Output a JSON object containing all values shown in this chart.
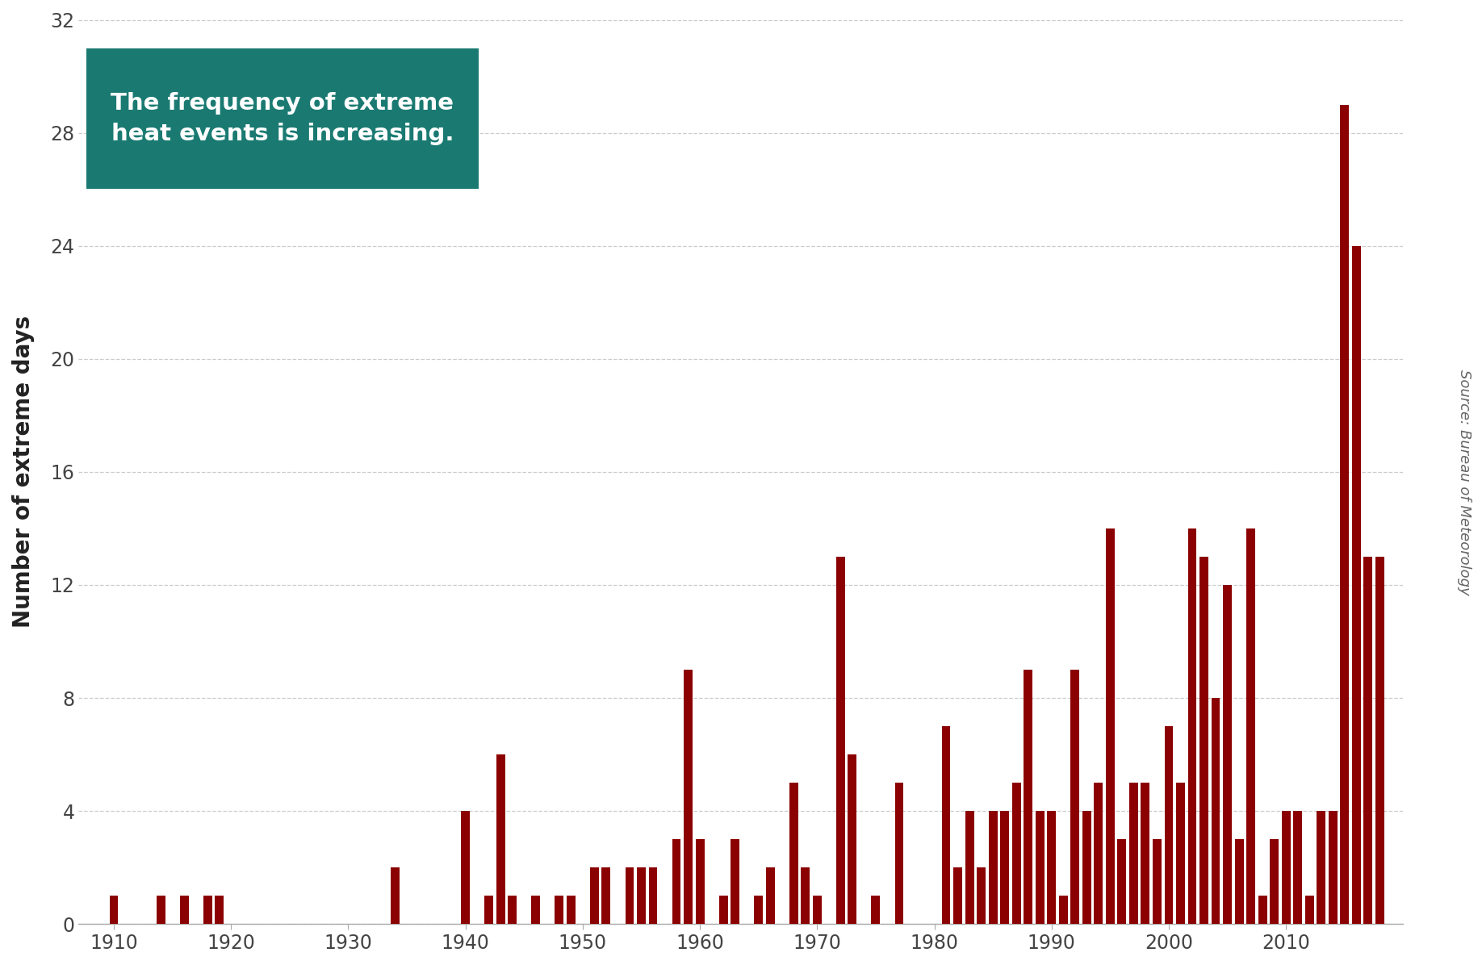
{
  "years": [
    1910,
    1911,
    1912,
    1913,
    1914,
    1915,
    1916,
    1917,
    1918,
    1919,
    1920,
    1921,
    1922,
    1923,
    1924,
    1925,
    1926,
    1927,
    1928,
    1929,
    1930,
    1931,
    1932,
    1933,
    1934,
    1935,
    1936,
    1937,
    1938,
    1939,
    1940,
    1941,
    1942,
    1943,
    1944,
    1945,
    1946,
    1947,
    1948,
    1949,
    1950,
    1951,
    1952,
    1953,
    1954,
    1955,
    1956,
    1957,
    1958,
    1959,
    1960,
    1961,
    1962,
    1963,
    1964,
    1965,
    1966,
    1967,
    1968,
    1969,
    1970,
    1971,
    1972,
    1973,
    1974,
    1975,
    1976,
    1977,
    1978,
    1979,
    1980,
    1981,
    1982,
    1983,
    1984,
    1985,
    1986,
    1987,
    1988,
    1989,
    1990,
    1991,
    1992,
    1993,
    1994,
    1995,
    1996,
    1997,
    1998,
    1999,
    2000,
    2001,
    2002,
    2003,
    2004,
    2005,
    2006,
    2007,
    2008,
    2009,
    2010,
    2011,
    2012,
    2013,
    2014,
    2015,
    2016,
    2017,
    2018
  ],
  "values": [
    1,
    0,
    0,
    0,
    1,
    0,
    1,
    0,
    1,
    1,
    0,
    0,
    0,
    0,
    0,
    0,
    0,
    0,
    0,
    0,
    0,
    0,
    0,
    0,
    2,
    0,
    0,
    0,
    0,
    0,
    4,
    0,
    1,
    6,
    1,
    0,
    1,
    0,
    1,
    1,
    0,
    2,
    2,
    0,
    2,
    2,
    2,
    0,
    3,
    9,
    3,
    0,
    1,
    3,
    0,
    1,
    2,
    0,
    5,
    2,
    1,
    0,
    13,
    6,
    0,
    1,
    0,
    5,
    0,
    0,
    0,
    7,
    2,
    4,
    2,
    4,
    4,
    5,
    9,
    4,
    4,
    1,
    9,
    4,
    5,
    14,
    3,
    5,
    5,
    3,
    7,
    5,
    14,
    13,
    8,
    12,
    3,
    14,
    1,
    3,
    4,
    4,
    1,
    4,
    4,
    29,
    24,
    13,
    13
  ],
  "bar_color": "#8B0000",
  "background_color": "#ffffff",
  "ylabel": "Number of extreme days",
  "annotation_text": "The frequency of extreme\nheat events is increasing.",
  "annotation_bg": "#1a7a72",
  "annotation_text_color": "#ffffff",
  "source_text": "Source: Bureau of Meteorology",
  "ylim": [
    0,
    32
  ],
  "yticks": [
    0,
    4,
    8,
    12,
    16,
    20,
    24,
    28,
    32
  ],
  "xtick_positions": [
    1910,
    1920,
    1930,
    1940,
    1950,
    1960,
    1970,
    1980,
    1990,
    2000,
    2010
  ],
  "grid_color": "#cccccc",
  "grid_style": "--",
  "xlim_left": 1907,
  "xlim_right": 2020
}
